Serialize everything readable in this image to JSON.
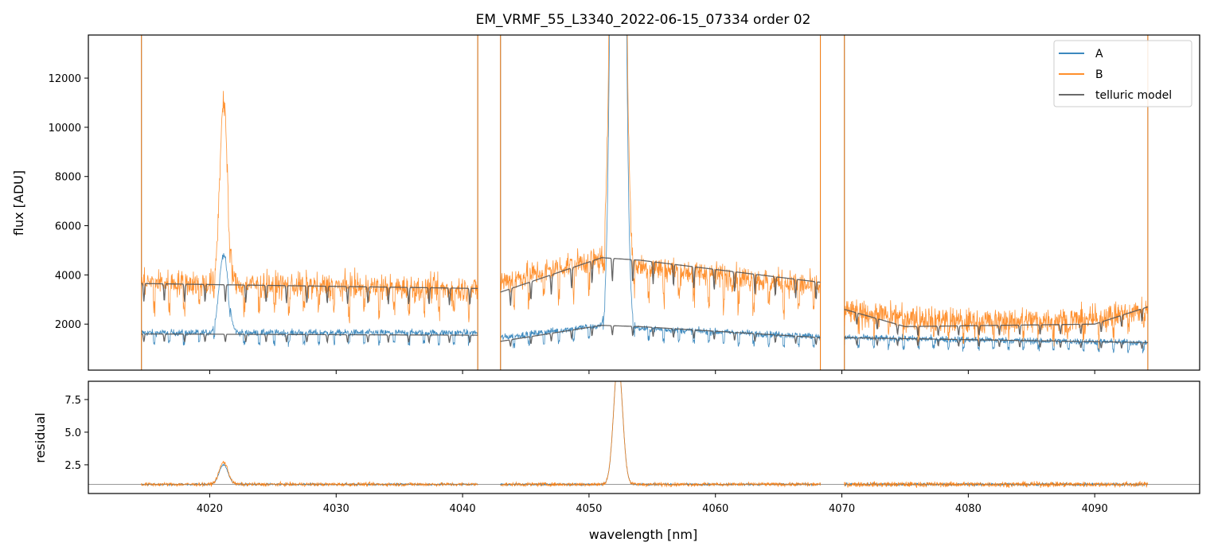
{
  "chart_data": [
    {
      "type": "line",
      "panel": "flux",
      "title": "EM_VRMF_55_L3340_2022-06-15_07334  order 02",
      "xlabel": "",
      "ylabel": "flux [ADU]",
      "xlim": [
        4010.4,
        4098.3
      ],
      "ylim": [
        130,
        13750
      ],
      "yticks": [
        2000,
        4000,
        6000,
        8000,
        10000,
        12000
      ],
      "ytick_labels": [
        "2000",
        "4000",
        "6000",
        "8000",
        "10000",
        "12000"
      ],
      "xticks": [
        4020,
        4030,
        4040,
        4050,
        4060,
        4070,
        4080,
        4090
      ],
      "legend_position": "top-right",
      "legend": [
        "A",
        "B",
        "telluric model"
      ],
      "segments": [
        [
          4014.6,
          4041.2
        ],
        [
          4043.0,
          4068.3
        ],
        [
          4070.2,
          4094.2
        ]
      ],
      "series": [
        {
          "name": "A",
          "color": "#1f77b4",
          "baseline": [
            [
              4014.6,
              1650
            ],
            [
              4041.2,
              1650
            ],
            [
              4043.0,
              1450
            ],
            [
              4050.0,
              1900
            ],
            [
              4055.0,
              1800
            ],
            [
              4068.3,
              1500
            ],
            [
              4070.2,
              1450
            ],
            [
              4094.2,
              1250
            ]
          ],
          "noise": 380,
          "peaks": [
            [
              4021.1,
              0.35,
              3200
            ],
            [
              4052.3,
              0.38,
              60000
            ]
          ]
        },
        {
          "name": "B",
          "color": "#ff7f0e",
          "baseline": [
            [
              4014.6,
              3700
            ],
            [
              4041.2,
              3400
            ],
            [
              4043.0,
              3700
            ],
            [
              4050.0,
              4600
            ],
            [
              4055.0,
              4300
            ],
            [
              4068.3,
              3500
            ],
            [
              4070.2,
              2500
            ],
            [
              4080.0,
              2100
            ],
            [
              4090.0,
              2200
            ],
            [
              4094.2,
              2600
            ]
          ],
          "noise": 1500,
          "peaks": [
            [
              4021.1,
              0.3,
              7500
            ],
            [
              4052.3,
              0.38,
              60000
            ]
          ]
        },
        {
          "name": "telluric model",
          "color": "#555555",
          "paths": [
            {
              "x": [
                4014.6,
                4041.2
              ],
              "y": [
                3650,
                3450
              ]
            },
            {
              "x": [
                4014.6,
                4041.2
              ],
              "y": [
                1600,
                1550
              ]
            },
            {
              "x": [
                4043.0,
                4051.0,
                4054.0,
                4068.3
              ],
              "y": [
                3300,
                4700,
                4600,
                3700
              ]
            },
            {
              "x": [
                4043.0,
                4051.0,
                4054.0,
                4068.3
              ],
              "y": [
                1300,
                1950,
                1900,
                1450
              ]
            },
            {
              "x": [
                4070.2,
                4075.0,
                4090.0,
                4094.2
              ],
              "y": [
                2600,
                1900,
                2000,
                2700
              ]
            },
            {
              "x": [
                4070.2,
                4094.2
              ],
              "y": [
                1450,
                1250
              ]
            }
          ]
        }
      ]
    },
    {
      "type": "line",
      "panel": "residual",
      "title": "",
      "xlabel": "wavelength [nm]",
      "ylabel": "residual",
      "xlim": [
        4010.4,
        4098.3
      ],
      "ylim": [
        0.3,
        8.9
      ],
      "yticks": [
        2.5,
        5.0,
        7.5
      ],
      "ytick_labels": [
        "2.5",
        "5.0",
        "7.5"
      ],
      "xticks": [
        4020,
        4030,
        4040,
        4050,
        4060,
        4070,
        4080,
        4090
      ],
      "xtick_labels": [
        "4020",
        "4030",
        "4040",
        "4050",
        "4060",
        "4070",
        "4080",
        "4090"
      ],
      "reference_line": 1.0,
      "series": [
        {
          "name": "A",
          "color": "#1f77b4",
          "level": 1.0,
          "noise": 0.18,
          "peaks": [
            [
              4021.1,
              0.35,
              1.5
            ],
            [
              4052.3,
              0.35,
              9.5
            ]
          ]
        },
        {
          "name": "B",
          "color": "#ff7f0e",
          "level": 1.0,
          "noise": 0.35,
          "peaks": [
            [
              4021.1,
              0.35,
              1.7
            ],
            [
              4052.3,
              0.35,
              9.5
            ]
          ]
        }
      ]
    }
  ]
}
